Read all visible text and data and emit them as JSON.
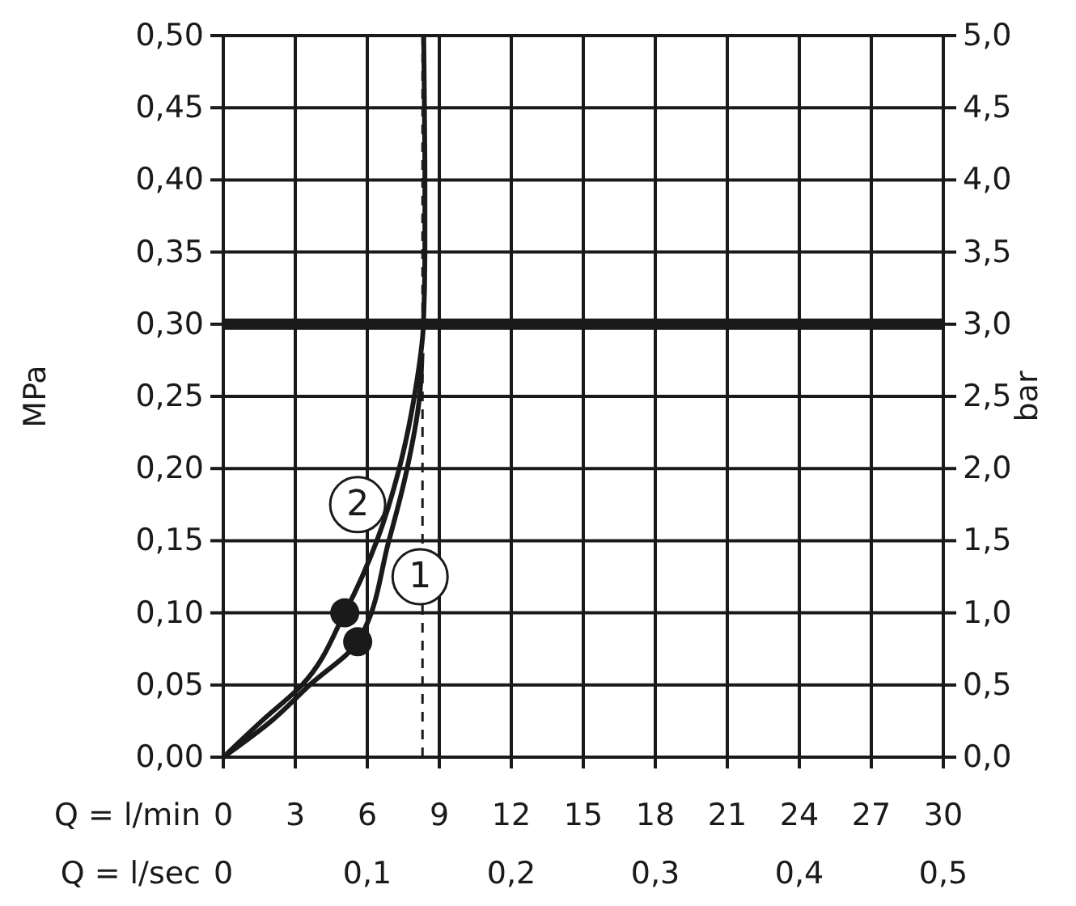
{
  "chart_data": {
    "type": "line",
    "xlabel": "Q = l/min",
    "x2label": "Q = l/sec",
    "ylabel": "MPa",
    "y2label": "bar",
    "xlim": [
      0,
      30
    ],
    "xticks": [
      0,
      3,
      6,
      9,
      12,
      15,
      18,
      21,
      24,
      27,
      30
    ],
    "x2lim": [
      0,
      0.5
    ],
    "x2ticks": [
      {
        "value": 0,
        "label": "0"
      },
      {
        "value": 0.1,
        "label": "0,1"
      },
      {
        "value": 0.2,
        "label": "0,2"
      },
      {
        "value": 0.3,
        "label": "0,3"
      },
      {
        "value": 0.4,
        "label": "0,4"
      },
      {
        "value": 0.5,
        "label": "0,5"
      }
    ],
    "ylim": [
      0,
      0.5
    ],
    "yticks": [
      {
        "value": 0,
        "label": "0,00"
      },
      {
        "value": 0.05,
        "label": "0,05"
      },
      {
        "value": 0.1,
        "label": "0,10"
      },
      {
        "value": 0.15,
        "label": "0,15"
      },
      {
        "value": 0.2,
        "label": "0,20"
      },
      {
        "value": 0.25,
        "label": "0,25"
      },
      {
        "value": 0.3,
        "label": "0,30"
      },
      {
        "value": 0.35,
        "label": "0,35"
      },
      {
        "value": 0.4,
        "label": "0,40"
      },
      {
        "value": 0.45,
        "label": "0,45"
      },
      {
        "value": 0.5,
        "label": "0,50"
      }
    ],
    "y2lim": [
      0,
      5
    ],
    "y2ticks": [
      {
        "value": 0,
        "label": "0,0"
      },
      {
        "value": 0.5,
        "label": "0,5"
      },
      {
        "value": 1,
        "label": "1,0"
      },
      {
        "value": 1.5,
        "label": "1,5"
      },
      {
        "value": 2,
        "label": "2,0"
      },
      {
        "value": 2.5,
        "label": "2,5"
      },
      {
        "value": 3,
        "label": "3,0"
      },
      {
        "value": 3.5,
        "label": "3,5"
      },
      {
        "value": 4,
        "label": "4,0"
      },
      {
        "value": 4.5,
        "label": "4,5"
      },
      {
        "value": 5,
        "label": "5,0"
      }
    ],
    "grid": true,
    "series": [
      {
        "color": "#1a1a1a",
        "x": [
          0,
          2.0,
          3.6,
          5.6,
          6.9,
          7.66,
          8.18,
          8.28
        ],
        "values": [
          0,
          0.025,
          0.05,
          0.08,
          0.15,
          0.2,
          0.25,
          0.28
        ]
      },
      {
        "color": "#1a1a1a",
        "x": [
          0,
          1.6,
          3.28,
          5.06,
          6.4,
          7.33,
          7.96,
          8.34,
          8.4,
          8.4,
          8.38,
          8.35
        ],
        "values": [
          0,
          0.025,
          0.05,
          0.1,
          0.15,
          0.2,
          0.25,
          0.3,
          0.35,
          0.4,
          0.45,
          0.5
        ]
      },
      {
        "type": "scatter",
        "color": "#1a1a1a",
        "marker": "circle",
        "x": [
          5.06,
          5.6
        ],
        "values": [
          0.1,
          0.08
        ]
      }
    ],
    "ref_lines": [
      {
        "axis": "y",
        "value": 0.3,
        "color": "#1a1a1a",
        "line_style": "solid"
      },
      {
        "axis": "x",
        "value": 8.3,
        "color": "#1a1a1a",
        "line_style": "dashed"
      }
    ],
    "annotations": [
      {
        "text": "2",
        "x": 5.6,
        "y": 0.175
      },
      {
        "text": "1",
        "x": 8.2,
        "y": 0.125
      }
    ]
  }
}
